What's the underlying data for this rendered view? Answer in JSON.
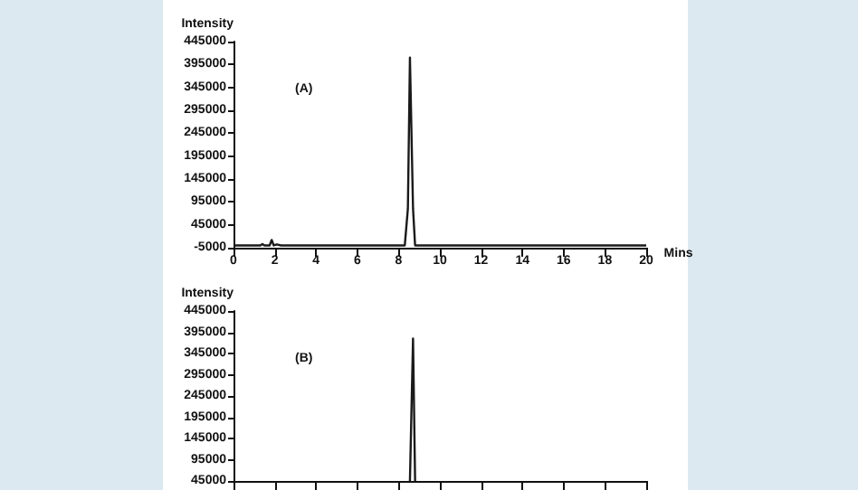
{
  "chart_data": [
    {
      "type": "line",
      "title": "(A)",
      "xlabel": "Mins",
      "ylabel": "Intensity",
      "xlim": [
        0,
        20
      ],
      "xticks": [
        0,
        2,
        4,
        6,
        8,
        10,
        12,
        14,
        16,
        18,
        20
      ],
      "ylim": [
        -5000,
        445000
      ],
      "yticks": [
        -5000,
        45000,
        95000,
        145000,
        195000,
        245000,
        295000,
        345000,
        395000,
        445000
      ],
      "grid": false,
      "marker": "none",
      "line_style": "solid",
      "series": [
        {
          "color": "#1a1a1a",
          "x": [
            0,
            1.3,
            1.4,
            1.5,
            1.75,
            1.85,
            1.95,
            2.1,
            2.3,
            8.3,
            8.45,
            8.55,
            8.7,
            8.8,
            20
          ],
          "values": [
            0,
            0,
            3000,
            0,
            0,
            12000,
            0,
            2000,
            0,
            0,
            80000,
            410000,
            80000,
            0,
            0
          ]
        }
      ]
    },
    {
      "type": "line",
      "title": "(B)",
      "ylabel": "Intensity",
      "xlim": [
        0,
        20
      ],
      "xticks": [
        0,
        2,
        4,
        6,
        8,
        10,
        12,
        14,
        16,
        18,
        20
      ],
      "ylim": [
        45000,
        445000
      ],
      "yticks": [
        45000,
        95000,
        145000,
        195000,
        245000,
        295000,
        345000,
        395000,
        445000
      ],
      "tick_labels": "y",
      "grid": false,
      "marker": "none",
      "line_style": "solid",
      "series": [
        {
          "color": "#1a1a1a",
          "x": [
            8.55,
            8.7,
            8.8
          ],
          "values": [
            45000,
            380000,
            45000
          ]
        }
      ]
    }
  ]
}
